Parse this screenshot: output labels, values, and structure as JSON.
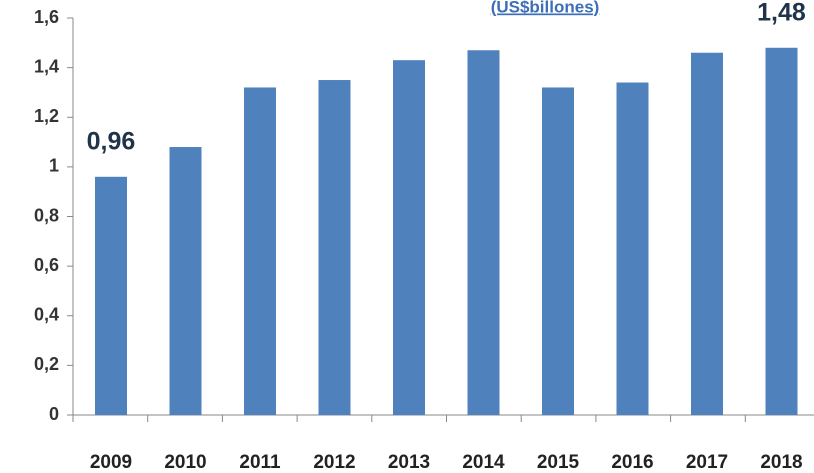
{
  "chart_data": {
    "type": "bar",
    "title": "(US$billones)",
    "categories": [
      "2009",
      "2010",
      "2011",
      "2012",
      "2013",
      "2014",
      "2015",
      "2016",
      "2017",
      "2018"
    ],
    "values": [
      0.96,
      1.08,
      1.32,
      1.35,
      1.43,
      1.47,
      1.32,
      1.34,
      1.46,
      1.48
    ],
    "value_labels": [
      "0,96",
      null,
      null,
      null,
      null,
      null,
      null,
      null,
      null,
      "1,48"
    ],
    "color": "#4f81bd",
    "ylim": [
      0,
      1.6
    ],
    "yticks": [
      0,
      {
        "value": 0.2,
        "label": "0,2"
      },
      {
        "value": 0.4,
        "label": "0,4"
      },
      {
        "value": 0.6,
        "label": "0,6"
      },
      {
        "value": 0.8,
        "label": "0,8"
      },
      1,
      {
        "value": 1.2,
        "label": "1,2"
      },
      {
        "value": 1.4,
        "label": "1,4"
      },
      {
        "value": 1.6,
        "label": "1,6"
      }
    ],
    "grid": false
  }
}
